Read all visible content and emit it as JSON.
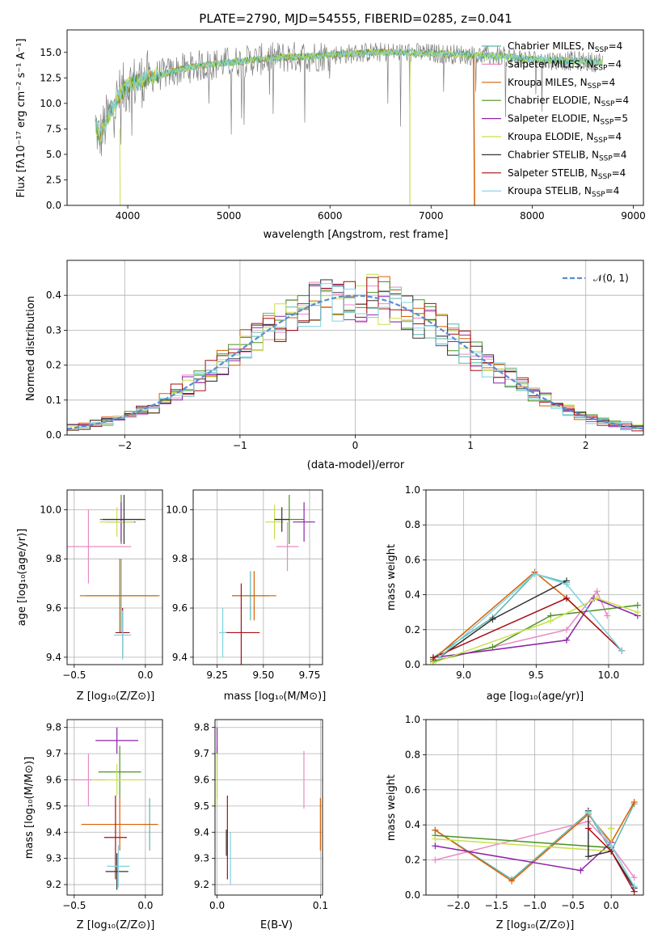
{
  "colors": [
    "#5ab4ac",
    "#e78ac3",
    "#d95f02",
    "#4d9221",
    "#8e24aa",
    "#c7e04a",
    "#333333",
    "#a50f15",
    "#7fd3e0"
  ],
  "chart_data": [
    {
      "id": "spectrum",
      "type": "line",
      "title": "PLATE=2790, MJD=54555, FIBERID=0285, z=0.041",
      "xlabel": "wavelength [Angstrom, rest frame]",
      "ylabel": "Flux [fλ10⁻¹⁷ erg cm⁻² s⁻¹ A⁻¹]",
      "xlim": [
        3400,
        9100
      ],
      "ylim": [
        0,
        17.2
      ],
      "xticks": [
        4000,
        5000,
        6000,
        7000,
        8000,
        9000
      ],
      "yticks": [
        0.0,
        2.5,
        5.0,
        7.5,
        10.0,
        12.5,
        15.0
      ],
      "grid": false,
      "legend_position": "right",
      "series": [
        {
          "name": "Chabrier MILES, N_SSP=4"
        },
        {
          "name": "Salpeter MILES, N_SSP=4"
        },
        {
          "name": "Kroupa MILES, N_SSP=4"
        },
        {
          "name": "Chabrier ELODIE, N_SSP=4"
        },
        {
          "name": "Salpeter ELODIE, N_SSP=5"
        },
        {
          "name": "Kroupa ELODIE, N_SSP=4"
        },
        {
          "name": "Chabrier STELIB, N_SSP=4"
        },
        {
          "name": "Salpeter STELIB, N_SSP=4"
        },
        {
          "name": "Kroupa STELIB, N_SSP=4"
        }
      ],
      "model_curve": {
        "x": [
          3680,
          3720,
          3800,
          3900,
          4000,
          4200,
          4400,
          4600,
          4800,
          5000,
          5200,
          5500,
          5800,
          6100,
          6400,
          6700,
          7000,
          7300,
          7430
        ],
        "y": [
          8.0,
          6.5,
          8.5,
          10.5,
          11.8,
          12.5,
          13.0,
          13.5,
          13.8,
          14.0,
          14.2,
          14.5,
          14.6,
          14.8,
          15.0,
          15.0,
          14.9,
          14.8,
          14.7
        ]
      },
      "extended_curve": {
        "x": [
          7430,
          7700,
          8000,
          8300,
          8700
        ],
        "y": [
          14.7,
          14.6,
          14.3,
          14.2,
          14.0
        ]
      },
      "cutoffs": [
        {
          "x": 6790
        },
        {
          "x": 7420
        },
        {
          "x": 3920
        }
      ]
    },
    {
      "id": "residuals",
      "type": "histogram",
      "xlabel": "(data-model)/error",
      "ylabel": "Normed distribution",
      "xlim": [
        -2.5,
        2.5
      ],
      "ylim": [
        0,
        0.5
      ],
      "xticks": [
        -2,
        -1,
        0,
        1,
        2
      ],
      "yticks": [
        0.0,
        0.1,
        0.2,
        0.3,
        0.4
      ],
      "grid": true,
      "legend": {
        "label": "𝒩(0, 1)",
        "position": "upper right"
      },
      "bin_width": 0.1
    },
    {
      "id": "age_vs_Z",
      "type": "scatter",
      "xlabel": "Z [log₁₀(Z/Z⊙)]",
      "ylabel": "age  [log₁₀(age/yr)]",
      "xlim": [
        -0.55,
        0.12
      ],
      "ylim": [
        9.37,
        10.08
      ],
      "xticks": [
        -0.5,
        0.0
      ],
      "yticks": [
        9.4,
        9.6,
        9.8,
        10.0
      ],
      "grid": true,
      "points": [
        {
          "series": 0,
          "x": -0.17,
          "y": 9.65,
          "xerr": 0.25,
          "yerr": 0.15
        },
        {
          "series": 1,
          "x": -0.4,
          "y": 9.85,
          "xerr": 0.3,
          "yerr": 0.15
        },
        {
          "series": 2,
          "x": -0.18,
          "y": 9.65,
          "xerr": 0.28,
          "yerr": 0.15
        },
        {
          "series": 3,
          "x": -0.17,
          "y": 9.96,
          "xerr": 0.15,
          "yerr": 0.1
        },
        {
          "series": 4,
          "x": -0.17,
          "y": 9.95,
          "xerr": 0.1,
          "yerr": 0.08
        },
        {
          "series": 5,
          "x": -0.2,
          "y": 9.95,
          "xerr": 0.12,
          "yerr": 0.06
        },
        {
          "series": 6,
          "x": -0.15,
          "y": 9.96,
          "xerr": 0.15,
          "yerr": 0.1
        },
        {
          "series": 7,
          "x": -0.16,
          "y": 9.5,
          "xerr": 0.05,
          "yerr": 0.1
        },
        {
          "series": 8,
          "x": -0.16,
          "y": 9.49,
          "xerr": 0.06,
          "yerr": 0.1
        }
      ]
    },
    {
      "id": "age_vs_mass",
      "type": "scatter",
      "xlabel": "mass [log₁₀(M/M⊙)]",
      "ylabel": "",
      "xlim": [
        9.12,
        9.82
      ],
      "ylim": [
        9.37,
        10.08
      ],
      "xticks": [
        9.25,
        9.5,
        9.75
      ],
      "yticks": [
        9.4,
        9.6,
        9.8,
        10.0
      ],
      "grid": true,
      "points": [
        {
          "series": 0,
          "x": 9.43,
          "y": 9.65,
          "xerr": 0.1,
          "yerr": 0.1
        },
        {
          "series": 1,
          "x": 9.63,
          "y": 9.85,
          "xerr": 0.06,
          "yerr": 0.1
        },
        {
          "series": 2,
          "x": 9.45,
          "y": 9.65,
          "xerr": 0.12,
          "yerr": 0.1
        },
        {
          "series": 3,
          "x": 9.64,
          "y": 9.96,
          "xerr": 0.08,
          "yerr": 0.1
        },
        {
          "series": 4,
          "x": 9.72,
          "y": 9.95,
          "xerr": 0.06,
          "yerr": 0.08
        },
        {
          "series": 5,
          "x": 9.56,
          "y": 9.95,
          "xerr": 0.05,
          "yerr": 0.07
        },
        {
          "series": 6,
          "x": 9.6,
          "y": 9.96,
          "xerr": 0.04,
          "yerr": 0.05
        },
        {
          "series": 7,
          "x": 9.38,
          "y": 9.5,
          "xerr": 0.1,
          "yerr": 0.2
        },
        {
          "series": 8,
          "x": 9.28,
          "y": 9.5,
          "xerr": 0.02,
          "yerr": 0.1
        }
      ]
    },
    {
      "id": "weight_vs_age",
      "type": "line",
      "xlabel": "age  [log₁₀(age/yr)]",
      "ylabel": "mass weight",
      "xlim": [
        8.74,
        10.24
      ],
      "ylim": [
        0,
        1
      ],
      "xticks": [
        9.0,
        9.5,
        10.0
      ],
      "yticks": [
        0.0,
        0.2,
        0.4,
        0.6,
        0.8,
        1.0
      ],
      "grid": true,
      "series": [
        {
          "x": [
            8.79,
            9.2,
            9.49,
            9.71
          ],
          "y": [
            0.04,
            0.27,
            0.52,
            0.47
          ]
        },
        {
          "x": [
            8.79,
            9.71,
            9.92,
            9.99
          ],
          "y": [
            0.02,
            0.2,
            0.42,
            0.28
          ]
        },
        {
          "x": [
            8.79,
            9.49,
            9.71,
            10.09
          ],
          "y": [
            0.03,
            0.53,
            0.38,
            0.08
          ]
        },
        {
          "x": [
            8.79,
            9.2,
            9.6,
            10.2
          ],
          "y": [
            0.02,
            0.1,
            0.28,
            0.34
          ]
        },
        {
          "x": [
            8.79,
            9.71,
            9.9,
            10.2
          ],
          "y": [
            0.04,
            0.14,
            0.38,
            0.28
          ]
        },
        {
          "x": [
            8.79,
            9.6,
            9.92,
            10.2
          ],
          "y": [
            0.01,
            0.25,
            0.38,
            0.3
          ]
        },
        {
          "x": [
            8.83,
            9.2,
            9.71
          ],
          "y": [
            0.04,
            0.26,
            0.48
          ]
        },
        {
          "x": [
            8.79,
            9.71,
            10.09
          ],
          "y": [
            0.04,
            0.38,
            0.08
          ]
        },
        {
          "x": [
            8.83,
            9.49,
            9.71,
            10.09
          ],
          "y": [
            0.04,
            0.52,
            0.46,
            0.08
          ]
        }
      ]
    },
    {
      "id": "mass_vs_Z",
      "type": "scatter",
      "xlabel": "Z [log₁₀(Z/Z⊙)]",
      "ylabel": "mass [log₁₀(M/M⊙)]",
      "xlim": [
        -0.55,
        0.12
      ],
      "ylim": [
        9.16,
        9.83
      ],
      "xticks": [
        -0.5,
        0.0
      ],
      "yticks": [
        9.2,
        9.3,
        9.4,
        9.5,
        9.6,
        9.7,
        9.8
      ],
      "grid": true,
      "points": [
        {
          "series": 0,
          "x": 0.03,
          "y": 9.43,
          "xerr": 0.05,
          "yerr": 0.1
        },
        {
          "series": 1,
          "x": -0.4,
          "y": 9.6,
          "xerr": 0.12,
          "yerr": 0.1
        },
        {
          "series": 2,
          "x": -0.18,
          "y": 9.43,
          "xerr": 0.27,
          "yerr": 0.1
        },
        {
          "series": 3,
          "x": -0.18,
          "y": 9.63,
          "xerr": 0.15,
          "yerr": 0.1
        },
        {
          "series": 4,
          "x": -0.2,
          "y": 9.75,
          "xerr": 0.15,
          "yerr": 0.05
        },
        {
          "series": 5,
          "x": -0.2,
          "y": 9.6,
          "xerr": 0.18,
          "yerr": 0.06
        },
        {
          "series": 6,
          "x": -0.2,
          "y": 9.25,
          "xerr": 0.08,
          "yerr": 0.07
        },
        {
          "series": 7,
          "x": -0.21,
          "y": 9.38,
          "xerr": 0.08,
          "yerr": 0.16
        },
        {
          "series": 8,
          "x": -0.19,
          "y": 9.27,
          "xerr": 0.08,
          "yerr": 0.08
        }
      ]
    },
    {
      "id": "mass_vs_ebv",
      "type": "scatter",
      "xlabel": "E(B-V)",
      "ylabel": "",
      "xlim": [
        -0.002,
        0.102
      ],
      "ylim": [
        9.16,
        9.83
      ],
      "xticks": [
        0.0,
        0.1
      ],
      "yticks": [
        9.2,
        9.3,
        9.4,
        9.5,
        9.6,
        9.7,
        9.8
      ],
      "grid": true,
      "points": [
        {
          "series": 0,
          "x": 0.1,
          "y": 9.43,
          "xerr": 0.0,
          "yerr": 0.1
        },
        {
          "series": 1,
          "x": 0.084,
          "y": 9.6,
          "xerr": 0.0,
          "yerr": 0.11
        },
        {
          "series": 2,
          "x": 0.1,
          "y": 9.43,
          "xerr": 0.0,
          "yerr": 0.1
        },
        {
          "series": 3,
          "x": 0.0,
          "y": 9.63,
          "xerr": 0.0,
          "yerr": 0.1
        },
        {
          "series": 4,
          "x": 0.0,
          "y": 9.75,
          "xerr": 0.0,
          "yerr": 0.05
        },
        {
          "series": 5,
          "x": 0.0,
          "y": 9.6,
          "xerr": 0.0,
          "yerr": 0.1
        },
        {
          "series": 6,
          "x": 0.009,
          "y": 9.36,
          "xerr": 0.0,
          "yerr": 0.05
        },
        {
          "series": 7,
          "x": 0.01,
          "y": 9.38,
          "xerr": 0.0,
          "yerr": 0.16
        },
        {
          "series": 8,
          "x": 0.013,
          "y": 9.3,
          "xerr": 0.0,
          "yerr": 0.1
        }
      ]
    },
    {
      "id": "weight_vs_Z",
      "type": "line",
      "xlabel": "Z [log₁₀(Z/Z⊙)]",
      "ylabel": "mass weight",
      "xlim": [
        -2.42,
        0.42
      ],
      "ylim": [
        0,
        1
      ],
      "xticks": [
        -2.0,
        -1.5,
        -1.0,
        -0.5,
        0.0
      ],
      "yticks": [
        0.0,
        0.2,
        0.4,
        0.6,
        0.8,
        1.0
      ],
      "grid": true,
      "series": [
        {
          "x": [
            -2.3,
            -1.3,
            -0.3,
            0.0,
            0.3
          ],
          "y": [
            0.37,
            0.09,
            0.47,
            0.25,
            0.52
          ]
        },
        {
          "x": [
            -2.3,
            -0.3,
            0.0,
            0.3
          ],
          "y": [
            0.2,
            0.42,
            0.28,
            0.1
          ]
        },
        {
          "x": [
            -2.3,
            -1.3,
            -0.3,
            0.0,
            0.3
          ],
          "y": [
            0.37,
            0.08,
            0.46,
            0.3,
            0.53
          ]
        },
        {
          "x": [
            -2.3,
            0.0,
            0.0
          ],
          "y": [
            0.34,
            0.27,
            0.38
          ]
        },
        {
          "x": [
            -2.3,
            -0.4,
            0.0
          ],
          "y": [
            0.28,
            0.14,
            0.3
          ]
        },
        {
          "x": [
            -2.3,
            0.0,
            0.0
          ],
          "y": [
            0.32,
            0.25,
            0.38
          ]
        },
        {
          "x": [
            -0.3,
            -0.3,
            0.0,
            0.3
          ],
          "y": [
            0.48,
            0.22,
            0.25,
            0.04
          ]
        },
        {
          "x": [
            -0.3,
            0.0,
            0.3
          ],
          "y": [
            0.38,
            0.25,
            0.02
          ]
        },
        {
          "x": [
            -0.3,
            0.0,
            0.3
          ],
          "y": [
            0.47,
            0.28,
            0.05
          ]
        }
      ]
    }
  ]
}
